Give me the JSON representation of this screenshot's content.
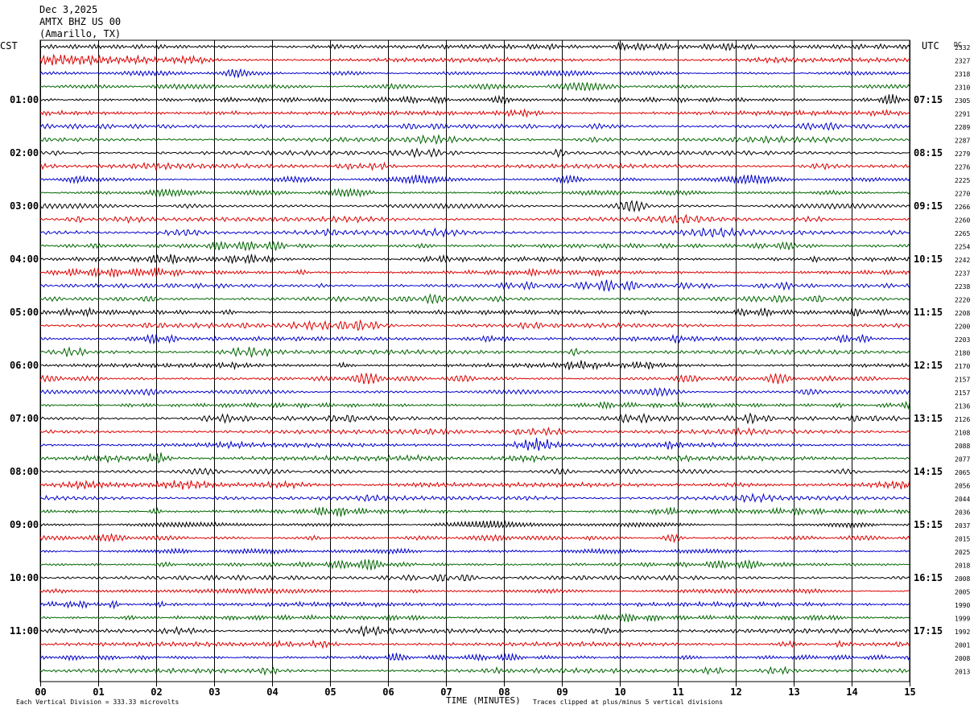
{
  "header": {
    "date": "Dec 3,2025",
    "station": "AMTX BHZ US 00",
    "location": "(Amarillo, TX)",
    "left_tz": "CST",
    "right_tz": "UTC",
    "dc_label": "DC"
  },
  "chart_data": {
    "type": "line",
    "title": "AMTX BHZ US 00",
    "xlabel": "TIME (MINUTES)",
    "x_ticks": [
      "00",
      "01",
      "02",
      "03",
      "04",
      "05",
      "06",
      "07",
      "08",
      "09",
      "10",
      "11",
      "12",
      "13",
      "14",
      "15"
    ],
    "xlim": [
      0,
      15
    ],
    "left_hour_labels": [
      "01:00",
      "02:00",
      "03:00",
      "04:00",
      "05:00",
      "06:00",
      "07:00",
      "08:00",
      "09:00",
      "10:00",
      "11:00"
    ],
    "right_hour_labels": [
      "07:15",
      "08:15",
      "09:15",
      "10:15",
      "11:15",
      "12:15",
      "13:15",
      "14:15",
      "15:15",
      "16:15",
      "17:15"
    ],
    "trace_colors": [
      "#000000",
      "#dd0000",
      "#0000cc",
      "#006600"
    ],
    "traces_per_hour": 4,
    "trace_count": 48,
    "trace_interval_minutes": 15,
    "dc_offsets": [
      "2332",
      "2327",
      "2318",
      "2310",
      "2305",
      "2291",
      "2289",
      "2287",
      "2279",
      "2276",
      "2225",
      "2270",
      "2266",
      "2260",
      "2265",
      "2254",
      "2242",
      "2237",
      "2238",
      "2220",
      "2208",
      "2200",
      "2203",
      "2180",
      "2170",
      "2157",
      "2157",
      "2136",
      "2126",
      "2108",
      "2088",
      "2077",
      "2065",
      "2056",
      "2044",
      "2036",
      "2037",
      "2015",
      "2025",
      "2018",
      "2008",
      "2005",
      "1990",
      "1999",
      "1992",
      "2001",
      "2008",
      "2013"
    ],
    "footer_left": "Each Vertical Division =  333.33 microvolts",
    "footer_right": "Traces clipped at plus/minus 5 vertical divisions"
  }
}
